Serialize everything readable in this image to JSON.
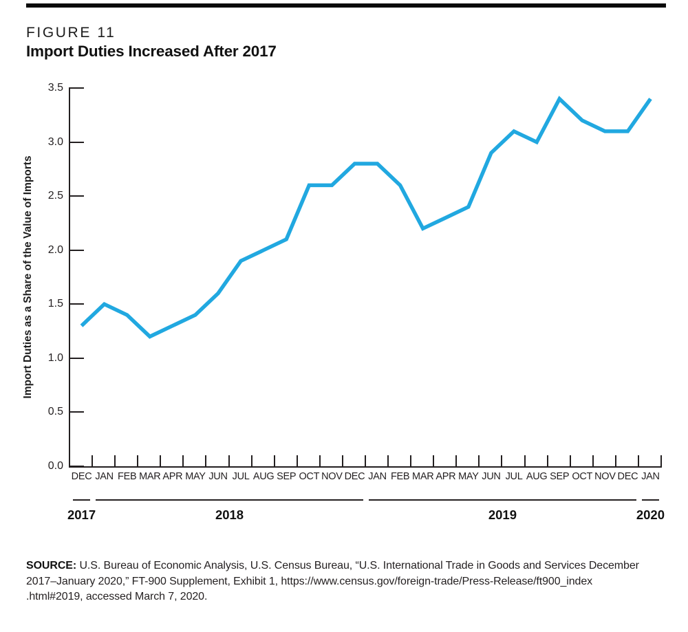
{
  "header": {
    "figure_label": "FIGURE 11",
    "title": "Import Duties Increased After 2017"
  },
  "chart_data": {
    "type": "line",
    "title": "Import Duties Increased After 2017",
    "xlabel": "",
    "ylabel": "Import Duties as a Share of the Value of Imports",
    "categories": [
      "DEC",
      "JAN",
      "FEB",
      "MAR",
      "APR",
      "MAY",
      "JUN",
      "JUL",
      "AUG",
      "SEP",
      "OCT",
      "NOV",
      "DEC",
      "JAN",
      "FEB",
      "MAR",
      "APR",
      "MAY",
      "JUN",
      "JUL",
      "AUG",
      "SEP",
      "OCT",
      "NOV",
      "DEC",
      "JAN"
    ],
    "values": [
      1.3,
      1.5,
      1.4,
      1.2,
      1.3,
      1.4,
      1.6,
      1.9,
      2.0,
      2.1,
      2.6,
      2.6,
      2.8,
      2.8,
      2.6,
      2.2,
      2.3,
      2.4,
      2.9,
      3.1,
      3.0,
      3.4,
      3.2,
      3.1,
      3.1,
      3.4
    ],
    "years": [
      {
        "label": "2017",
        "months": 1
      },
      {
        "label": "2018",
        "months": 12
      },
      {
        "label": "2019",
        "months": 12
      },
      {
        "label": "2020",
        "months": 1
      }
    ],
    "y_tick_labels": [
      "0.0",
      "0.5",
      "1.0",
      "1.5",
      "2.0",
      "2.5",
      "3.0",
      "3.5"
    ],
    "ylim": [
      0.0,
      3.5
    ],
    "grid": "off",
    "legend": "none",
    "line_color": "#21A8E0"
  },
  "source": {
    "prefix": "SOURCE:",
    "lines": [
      "U.S. Bureau of Economic Analysis, U.S. Census Bureau, “U.S. International Trade in Goods and Services December",
      "2017–January 2020,” FT-900 Supplement, Exhibit 1, https://www.census.gov/foreign-trade/Press-Release/ft900_index",
      ".html#2019, accessed March 7, 2020."
    ]
  }
}
